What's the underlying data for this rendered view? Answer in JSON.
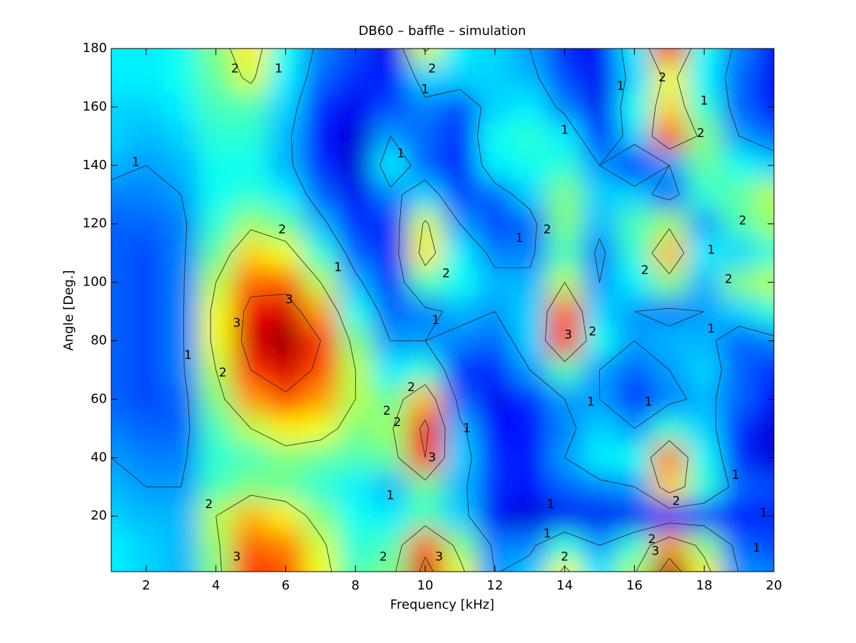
{
  "chart_data": {
    "type": "contour",
    "title": "DB60 – baffle – simulation",
    "xlabel": "Frequency [kHz]",
    "ylabel": "Angle [Deg.]",
    "xlim": [
      1,
      20
    ],
    "ylim": [
      1,
      180
    ],
    "xticks": [
      2,
      4,
      6,
      8,
      10,
      12,
      14,
      16,
      18,
      20
    ],
    "yticks": [
      20,
      40,
      60,
      80,
      100,
      120,
      140,
      160,
      180
    ],
    "colormap": "jet",
    "clim": [
      0,
      3.6
    ],
    "levels": [
      1,
      2,
      3
    ],
    "x": [
      1,
      2,
      3,
      4,
      5,
      6,
      7,
      8,
      9,
      10,
      11,
      12,
      13,
      14,
      15,
      16,
      17,
      18,
      19,
      20
    ],
    "y": [
      0,
      10,
      20,
      30,
      40,
      50,
      60,
      70,
      80,
      90,
      100,
      110,
      120,
      130,
      140,
      150,
      160,
      170,
      180
    ],
    "z": [
      [
        1.3,
        1.2,
        1.1,
        1.8,
        3.0,
        2.9,
        2.2,
        1.6,
        1.8,
        3.3,
        2.2,
        1.0,
        1.2,
        2.2,
        1.3,
        2.0,
        3.5,
        2.3,
        1.0,
        0.9
      ],
      [
        1.3,
        1.2,
        1.1,
        1.9,
        2.8,
        2.7,
        2.1,
        1.5,
        1.6,
        2.8,
        1.8,
        0.9,
        0.9,
        1.5,
        1.0,
        1.5,
        2.6,
        1.8,
        0.8,
        0.7
      ],
      [
        1.2,
        1.1,
        1.1,
        2.0,
        2.5,
        2.3,
        1.8,
        1.4,
        1.3,
        1.6,
        1.2,
        0.4,
        0.3,
        0.4,
        0.4,
        0.4,
        0.5,
        0.6,
        0.5,
        0.6
      ],
      [
        1.1,
        1.0,
        1.0,
        1.6,
        1.8,
        1.7,
        1.5,
        1.3,
        1.1,
        1.7,
        1.1,
        0.6,
        0.5,
        0.8,
        0.9,
        1.0,
        2.4,
        1.5,
        0.8,
        0.7
      ],
      [
        1.0,
        0.9,
        0.9,
        1.5,
        1.6,
        1.8,
        1.7,
        1.6,
        1.7,
        3.0,
        1.2,
        0.6,
        0.5,
        1.0,
        1.3,
        1.4,
        2.7,
        1.4,
        0.6,
        0.3
      ],
      [
        0.9,
        0.8,
        0.8,
        1.6,
        2.0,
        2.3,
        2.2,
        1.8,
        1.9,
        3.2,
        1.1,
        0.5,
        0.5,
        0.9,
        1.2,
        1.0,
        1.5,
        1.2,
        0.6,
        0.3
      ],
      [
        0.8,
        0.7,
        0.8,
        1.8,
        2.6,
        2.9,
        2.6,
        2.0,
        1.7,
        2.5,
        0.8,
        0.4,
        0.6,
        1.0,
        1.0,
        0.6,
        0.9,
        1.1,
        0.8,
        0.5
      ],
      [
        0.8,
        0.7,
        0.9,
        2.0,
        3.0,
        3.3,
        2.9,
        2.0,
        1.3,
        1.5,
        0.6,
        0.6,
        1.0,
        1.6,
        1.0,
        0.8,
        1.0,
        1.2,
        0.8,
        0.6
      ],
      [
        0.8,
        0.7,
        0.9,
        2.2,
        3.3,
        3.5,
        3.0,
        1.8,
        1.0,
        1.0,
        0.9,
        0.8,
        1.2,
        3.0,
        1.4,
        1.0,
        1.1,
        1.1,
        0.8,
        0.9
      ],
      [
        0.8,
        0.7,
        0.9,
        2.2,
        3.2,
        3.3,
        2.6,
        1.4,
        0.8,
        0.9,
        1.1,
        1.0,
        1.2,
        2.8,
        1.2,
        1.0,
        0.9,
        1.0,
        1.2,
        1.5
      ],
      [
        0.8,
        0.7,
        0.9,
        2.0,
        2.8,
        2.8,
        2.0,
        1.1,
        0.6,
        1.6,
        1.4,
        1.1,
        1.1,
        2.0,
        1.0,
        1.3,
        1.8,
        1.1,
        1.8,
        2.0
      ],
      [
        0.8,
        0.7,
        0.9,
        1.7,
        2.4,
        2.2,
        1.5,
        0.8,
        0.6,
        2.3,
        1.3,
        0.9,
        0.9,
        1.6,
        0.9,
        1.5,
        2.5,
        1.3,
        1.2,
        1.5
      ],
      [
        0.8,
        0.8,
        0.9,
        1.5,
        1.9,
        1.7,
        1.1,
        0.6,
        0.6,
        2.1,
        1.0,
        0.7,
        0.8,
        1.8,
        1.1,
        1.6,
        1.9,
        1.0,
        1.6,
        1.9
      ],
      [
        0.9,
        0.9,
        1.0,
        1.4,
        1.5,
        1.3,
        0.8,
        0.4,
        0.9,
        1.2,
        0.7,
        0.8,
        1.2,
        1.8,
        1.2,
        1.2,
        0.8,
        1.5,
        1.7,
        2.0
      ],
      [
        1.1,
        1.0,
        1.1,
        1.4,
        1.4,
        1.1,
        0.6,
        0.3,
        1.3,
        0.8,
        0.5,
        1.3,
        1.4,
        1.5,
        1.0,
        0.5,
        1.0,
        1.7,
        1.4,
        1.2
      ],
      [
        1.2,
        1.1,
        1.2,
        1.5,
        1.5,
        1.1,
        0.5,
        0.3,
        1.0,
        0.8,
        0.6,
        1.4,
        1.5,
        1.3,
        0.6,
        1.2,
        2.8,
        1.8,
        1.0,
        0.8
      ],
      [
        1.2,
        1.2,
        1.3,
        1.6,
        1.6,
        1.2,
        0.6,
        0.4,
        0.7,
        0.9,
        0.7,
        1.2,
        1.3,
        0.9,
        0.4,
        1.4,
        2.4,
        1.5,
        0.8,
        0.5
      ],
      [
        1.3,
        1.3,
        1.4,
        1.7,
        2.1,
        1.3,
        0.8,
        0.6,
        0.5,
        1.2,
        1.2,
        1.2,
        1.1,
        0.7,
        0.4,
        1.2,
        2.2,
        1.3,
        0.8,
        0.4
      ],
      [
        1.3,
        1.3,
        1.4,
        1.8,
        2.3,
        1.4,
        0.9,
        0.7,
        0.4,
        2.1,
        1.3,
        1.2,
        1.0,
        0.6,
        0.5,
        1.3,
        3.0,
        1.4,
        0.9,
        0.5
      ]
    ],
    "contour_labels": {
      "x": [
        4.55,
        5.8,
        10.2,
        10.0,
        15.6,
        16.8,
        18.0,
        14.0,
        17.9,
        1.7,
        9.3,
        5.9,
        13.5,
        12.7,
        19.1,
        18.2,
        10.6,
        16.3,
        7.5,
        18.7,
        6.1,
        4.6,
        10.3,
        14.1,
        14.8,
        18.2,
        3.2,
        4.2,
        9.6,
        8.9,
        9.2,
        14.75,
        16.4,
        11.2,
        10.2,
        18.9,
        17.2,
        3.8,
        9.0,
        13.6,
        19.7,
        13.5,
        16.5,
        16.6,
        8.8,
        19.5,
        4.6,
        10.4,
        14.0
      ],
      "y": [
        173,
        173,
        173,
        166,
        167,
        170,
        162,
        152,
        151,
        141,
        144,
        118,
        118,
        115,
        121,
        111,
        103,
        104,
        105,
        101,
        94,
        86,
        87,
        82,
        83,
        84,
        75,
        69,
        64,
        56,
        52,
        59,
        59,
        50,
        40,
        34,
        25,
        24,
        27,
        24,
        21,
        14,
        12,
        8,
        6,
        9,
        6,
        6,
        6
      ],
      "labels": [
        2,
        1,
        2,
        1,
        1,
        2,
        1,
        1,
        2,
        1,
        1,
        2,
        2,
        1,
        2,
        1,
        2,
        2,
        1,
        2,
        3,
        3,
        1,
        3,
        2,
        1,
        1,
        2,
        2,
        2,
        2,
        1,
        1,
        1,
        3,
        1,
        2,
        2,
        1,
        1,
        1,
        1,
        2,
        3,
        2,
        1,
        3,
        3,
        2
      ]
    }
  }
}
